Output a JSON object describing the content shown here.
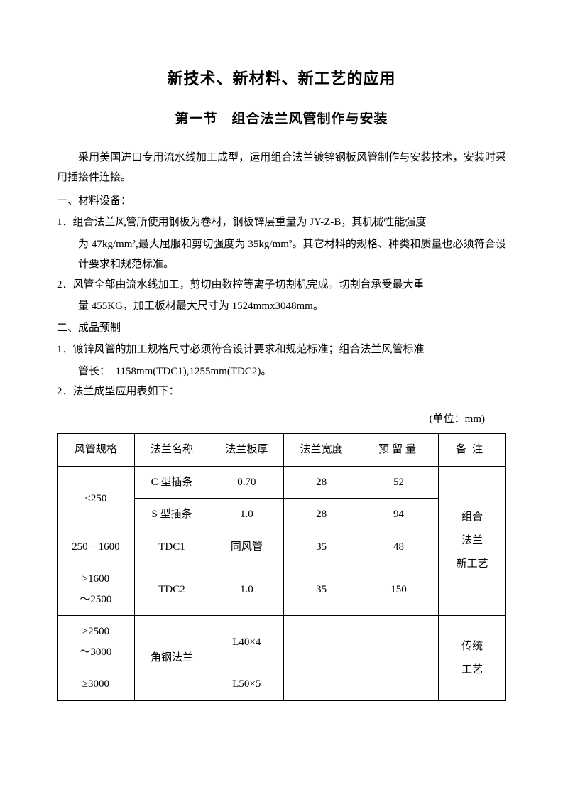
{
  "titles": {
    "main": "新技术、新材料、新工艺的应用",
    "sub": "第一节　组合法兰风管制作与安装"
  },
  "intro": "采用美国进口专用流水线加工成型，运用组合法兰镀锌钢板风管制作与安装技术，安装时采用插接件连接。",
  "sections": {
    "s1": {
      "head": "一、材料设备：",
      "item1_num": "1．",
      "item1_line1": "组合法兰风管所使用钢板为卷材，钢板锌层重量为 JY-Z-B，其机械性能强度",
      "item1_line2": "为 47kg/mm²,最大屈服和剪切强度为 35kg/mm²。其它材料的规格、种类和质量也必须符合设计要求和规范标准。",
      "item2_num": "2．",
      "item2_line1": "风管全部由流水线加工，剪切由数控等离子切割机完成。切割台承受最大重",
      "item2_line2": "量 455KG，加工板材最大尺寸为 1524mmx3048mm。"
    },
    "s2": {
      "head": "二、成品预制",
      "item1_num": "1．",
      "item1_line1": "镀锌风管的加工规格尺寸必须符合设计要求和规范标准；组合法兰风管标准",
      "item1_line2": "管长：　1158mm(TDC1),1255mm(TDC2)。",
      "item2_num": "2．",
      "item2_text": "法兰成型应用表如下："
    }
  },
  "unit_label": "(单位：mm)",
  "table": {
    "headers": {
      "spec": "风管规格",
      "name": "法兰名称",
      "thick": "法兰板厚",
      "width": "法兰宽度",
      "reserve": "预留量",
      "note": "备注"
    },
    "rows": {
      "r1": {
        "spec": "<250",
        "name": "C 型插条",
        "thick": "0.70",
        "width": "28",
        "reserve": "52"
      },
      "r2": {
        "name": "S 型插条",
        "thick": "1.0",
        "width": "28",
        "reserve": "94"
      },
      "r3": {
        "spec": "250－1600",
        "name": "TDC1",
        "thick": "同风管",
        "width": "35",
        "reserve": "48"
      },
      "r4": {
        "spec_a": ">1600",
        "spec_b": "～2500",
        "name": "TDC2",
        "thick": "1.0",
        "width": "35",
        "reserve": "150"
      },
      "r5": {
        "spec_a": ">2500",
        "spec_b": "～3000",
        "name": "角钢法兰",
        "thick": "L40×4",
        "width": "",
        "reserve": ""
      },
      "r6": {
        "spec": "≥3000",
        "thick": "L50×5",
        "width": "",
        "reserve": ""
      }
    },
    "notes": {
      "group1_a": "组合",
      "group1_b": "法兰",
      "group1_c": "新工艺",
      "group2_a": "传统",
      "group2_b": "工艺"
    }
  }
}
